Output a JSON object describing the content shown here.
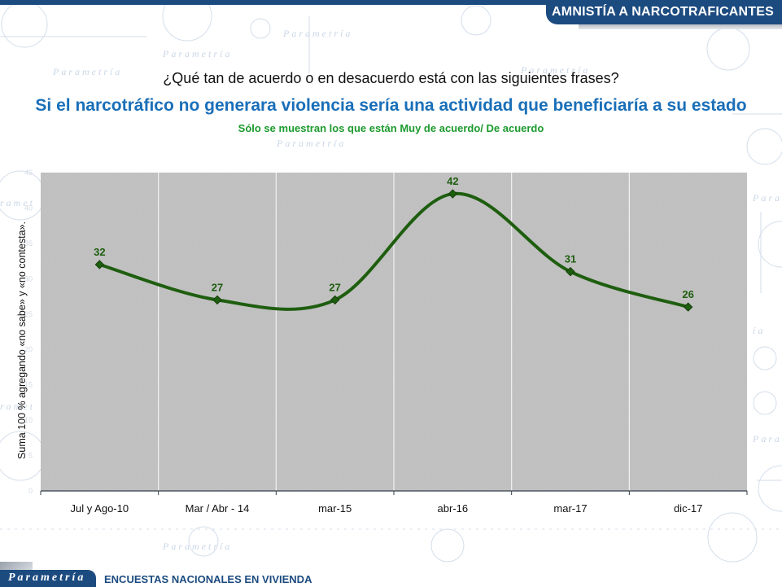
{
  "header": {
    "section_title": "AMNISTÍA A NARCOTRAFICANTES"
  },
  "question": "¿Qué tan de acuerdo o en desacuerdo está con las siguientes frases?",
  "headline": "Si el narcotráfico no generara violencia sería una actividad que beneficiaría a su estado",
  "subnote": "Sólo se muestran los que están Muy de acuerdo/ De acuerdo",
  "footer": {
    "logo": "Parametría",
    "label": "ENCUESTAS NACIONALES EN VIVIENDA"
  },
  "colors": {
    "brand_blue": "#1c4b80",
    "headline_blue": "#1a6fb8",
    "note_green": "#1c9a2e",
    "series_green": "#1e5e0f",
    "plot_bg": "#c0c0c0"
  },
  "chart_data": {
    "type": "line",
    "title": "Si el narcotráfico no generara violencia sería una actividad que beneficiaría a su estado",
    "subtitle": "Sólo se muestran los que están Muy de acuerdo/ De acuerdo",
    "xlabel": "",
    "ylabel": "Suma 100 % agregando «no sabe» y «no contesta».",
    "categories": [
      "Jul y Ago-10",
      "Mar / Abr - 14",
      "mar-15",
      "abr-16",
      "mar-17",
      "dic-17"
    ],
    "series": [
      {
        "name": "Muy de acuerdo/ De acuerdo",
        "values": [
          32,
          27,
          27,
          42,
          31,
          26
        ]
      }
    ],
    "data_labels": [
      "32",
      "27",
      "27",
      "42",
      "31",
      "26"
    ],
    "ylim": [
      0,
      45
    ],
    "yticks": [
      0,
      5,
      10,
      15,
      20,
      25,
      30,
      35,
      40,
      45
    ],
    "grid": "vertical",
    "smooth": true,
    "marker": "diamond",
    "legend": "none"
  }
}
